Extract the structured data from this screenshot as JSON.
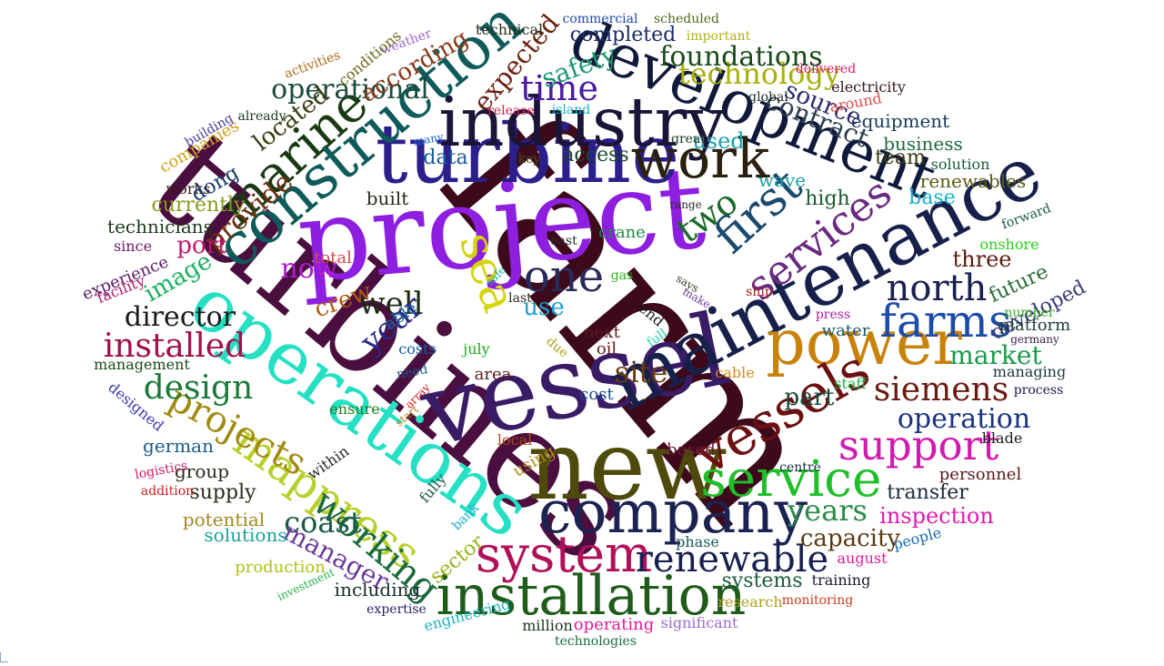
{
  "word_cloud": {
    "words": [
      {
        "text": "farm",
        "color": "#3d0a1c"
      },
      {
        "text": "turbines",
        "color": "#4a0f3f"
      },
      {
        "text": "project",
        "color": "#8e1fe0"
      },
      {
        "text": "vessel",
        "color": "#3a1c66"
      },
      {
        "text": "new",
        "color": "#4e4a0b"
      },
      {
        "text": "turbine",
        "color": "#2b1f8c"
      },
      {
        "text": "maintenance",
        "color": "#16204a"
      },
      {
        "text": "operations",
        "color": "#26e0c4"
      },
      {
        "text": "industry",
        "color": "#1a1436"
      },
      {
        "text": "development",
        "color": "#0f1a3a"
      },
      {
        "text": "construction",
        "color": "#0f5a5a"
      },
      {
        "text": "company",
        "color": "#1a2352"
      },
      {
        "text": "installation",
        "color": "#1f5c1a"
      },
      {
        "text": "system",
        "color": "#b0105a"
      },
      {
        "text": "power",
        "color": "#c8820a"
      },
      {
        "text": "work",
        "color": "#2a2010"
      },
      {
        "text": "vessels",
        "color": "#6a1010"
      },
      {
        "text": "service",
        "color": "#1fbf2a"
      },
      {
        "text": "farms",
        "color": "#1c4ca8"
      },
      {
        "text": "mappress",
        "color": "#b8cf2a"
      },
      {
        "text": "marine",
        "color": "#1a3a14"
      },
      {
        "text": "support",
        "color": "#d01ab0"
      },
      {
        "text": "first",
        "color": "#1a4a70"
      },
      {
        "text": "services",
        "color": "#6a2a80"
      },
      {
        "text": "one",
        "color": "#2a2a5a"
      },
      {
        "text": "sea",
        "color": "#d4d60a"
      },
      {
        "text": "projects",
        "color": "#a08a10"
      },
      {
        "text": "working",
        "color": "#1a6a3a"
      },
      {
        "text": "renewable",
        "color": "#182050"
      },
      {
        "text": "siemens",
        "color": "#6a1a10"
      },
      {
        "text": "north",
        "color": "#1a2050"
      },
      {
        "text": "operation",
        "color": "#1a3280"
      },
      {
        "text": "installed",
        "color": "#a0104a"
      },
      {
        "text": "design",
        "color": "#1a7a3a"
      },
      {
        "text": "time",
        "color": "#4a1aa0"
      },
      {
        "text": "technology",
        "color": "#a8b00a"
      },
      {
        "text": "foundations",
        "color": "#1a4a1a"
      },
      {
        "text": "operational",
        "color": "#1a4a3a"
      },
      {
        "text": "contract",
        "color": "#2a4050"
      },
      {
        "text": "well",
        "color": "#1a2a10"
      },
      {
        "text": "two",
        "color": "#1a6a2a"
      },
      {
        "text": "director",
        "color": "#1a1a1a"
      },
      {
        "text": "years",
        "color": "#2a8a4a"
      },
      {
        "text": "market",
        "color": "#1a9a4a"
      },
      {
        "text": "coast",
        "color": "#1a5a4a"
      },
      {
        "text": "provide",
        "color": "#6a3010"
      },
      {
        "text": "site",
        "color": "#6a3a10"
      },
      {
        "text": "part",
        "color": "#1a4a3a"
      },
      {
        "text": "safety",
        "color": "#1a9a6a"
      },
      {
        "text": "expected",
        "color": "#6a2010"
      },
      {
        "text": "according",
        "color": "#8a3a1a"
      },
      {
        "text": "manager",
        "color": "#6a3a9a"
      },
      {
        "text": "capacity",
        "color": "#5a3a10"
      },
      {
        "text": "inspection",
        "color": "#e01ab0"
      },
      {
        "text": "transfer",
        "color": "#1a2a3a"
      },
      {
        "text": "year",
        "color": "#2a2a8a"
      },
      {
        "text": "port",
        "color": "#c01a6a"
      },
      {
        "text": "now",
        "color": "#b01ad0"
      },
      {
        "text": "use",
        "color": "#1aa0d0"
      },
      {
        "text": "crew",
        "color": "#b05a10"
      },
      {
        "text": "located",
        "color": "#3a3a10"
      },
      {
        "text": "source",
        "color": "#2a2a6a"
      },
      {
        "text": "used",
        "color": "#1aa0b0"
      },
      {
        "text": "team",
        "color": "#3a3a10"
      },
      {
        "text": "business",
        "color": "#1a6a3a"
      },
      {
        "text": "base",
        "color": "#1ab0d0"
      },
      {
        "text": "high",
        "color": "#1a5a2a"
      },
      {
        "text": "three",
        "color": "#5a1a10"
      },
      {
        "text": "future",
        "color": "#2a6a3a"
      },
      {
        "text": "developed",
        "color": "#3a3a7a"
      },
      {
        "text": "renewables",
        "color": "#5a5a10"
      },
      {
        "text": "equipment",
        "color": "#1a3a5a"
      },
      {
        "text": "access",
        "color": "#1a4a2a"
      },
      {
        "text": "data",
        "color": "#1a5aa0"
      },
      {
        "text": "built",
        "color": "#2a2a1a"
      },
      {
        "text": "image",
        "color": "#1ab060"
      },
      {
        "text": "currently",
        "color": "#8a9a1a"
      },
      {
        "text": "technicians",
        "color": "#1a3a1a"
      },
      {
        "text": "supply",
        "color": "#2a2a1a"
      },
      {
        "text": "solutions",
        "color": "#1aa09a"
      },
      {
        "text": "german",
        "color": "#1a5a8a"
      },
      {
        "text": "potential",
        "color": "#a08a1a"
      },
      {
        "text": "production",
        "color": "#b0c01a"
      },
      {
        "text": "including",
        "color": "#1a2a2a"
      },
      {
        "text": "sector",
        "color": "#9ab01a"
      },
      {
        "text": "completed",
        "color": "#1a2a6a"
      },
      {
        "text": "technical",
        "color": "#2a2a1a"
      },
      {
        "text": "commercial",
        "color": "#1a4ab0"
      },
      {
        "text": "scheduled",
        "color": "#4a6a1a"
      },
      {
        "text": "important",
        "color": "#b0b01a"
      },
      {
        "text": "delivered",
        "color": "#e01a6a"
      },
      {
        "text": "electricity",
        "color": "#3a1a1a"
      },
      {
        "text": "global",
        "color": "#1a2a2a"
      },
      {
        "text": "around",
        "color": "#e04a4a"
      },
      {
        "text": "release",
        "color": "#d01a4a"
      },
      {
        "text": "island",
        "color": "#1ab0c0"
      },
      {
        "text": "many",
        "color": "#1a6ad0"
      },
      {
        "text": "great",
        "color": "#1a3a1a"
      },
      {
        "text": "key",
        "color": "#4a4a1a"
      },
      {
        "text": "solution",
        "color": "#1a5a3a"
      },
      {
        "text": "wave",
        "color": "#1aa0a0"
      },
      {
        "text": "range",
        "color": "#2a2a2a"
      },
      {
        "text": "forward",
        "color": "#1a5a3a"
      },
      {
        "text": "onshore",
        "color": "#2ad01a"
      },
      {
        "text": "companies",
        "color": "#d0a01a"
      },
      {
        "text": "building",
        "color": "#4a3a9a"
      },
      {
        "text": "already",
        "color": "#1a3a1a"
      },
      {
        "text": "weather",
        "color": "#a06ad0"
      },
      {
        "text": "conditions",
        "color": "#6a6a1a"
      },
      {
        "text": "activities",
        "color": "#b06a1a"
      },
      {
        "text": "works",
        "color": "#3a1a1a"
      },
      {
        "text": "dong",
        "color": "#1a3a6a"
      },
      {
        "text": "since",
        "color": "#6a1a6a"
      },
      {
        "text": "experience",
        "color": "#5a1a6a"
      },
      {
        "text": "facility",
        "color": "#b01a6a"
      },
      {
        "text": "total",
        "color": "#d04a4a"
      },
      {
        "text": "safe",
        "color": "#1ab0b0"
      },
      {
        "text": "gas",
        "color": "#2ab01a"
      },
      {
        "text": "east",
        "color": "#2a2a2a"
      },
      {
        "text": "crane",
        "color": "#1a8a4a"
      },
      {
        "text": "last",
        "color": "#2a2a1a"
      },
      {
        "text": "says",
        "color": "#3a3a1a"
      },
      {
        "text": "make",
        "color": "#6a3a9a"
      },
      {
        "text": "ship",
        "color": "#b01a1a"
      },
      {
        "text": "press",
        "color": "#b01ab0"
      },
      {
        "text": "number",
        "color": "#2ab01a"
      },
      {
        "text": "germany",
        "color": "#3a1a4a"
      },
      {
        "text": "platform",
        "color": "#1a3a3a"
      },
      {
        "text": "able",
        "color": "#1a6a9a"
      },
      {
        "text": "end",
        "color": "#1a1a1a"
      },
      {
        "text": "full",
        "color": "#2ad0b0"
      },
      {
        "text": "next",
        "color": "#5a1a1a"
      },
      {
        "text": "oil",
        "color": "#6a1a1a"
      },
      {
        "text": "water",
        "color": "#1a5a6a"
      },
      {
        "text": "costs",
        "color": "#1a5aa0"
      },
      {
        "text": "july",
        "color": "#1ab01a"
      },
      {
        "text": "due",
        "color": "#b0a01a"
      },
      {
        "text": "management",
        "color": "#1a4a1a"
      },
      {
        "text": "need",
        "color": "#1a5a8a"
      },
      {
        "text": "area",
        "color": "#5a1a1a"
      },
      {
        "text": "cost",
        "color": "#1a4a8a"
      },
      {
        "text": "cable",
        "color": "#d08a1a"
      },
      {
        "text": "staff",
        "color": "#1ab04a"
      },
      {
        "text": "managing",
        "color": "#1a3a3a"
      },
      {
        "text": "process",
        "color": "#1a1a4a"
      },
      {
        "text": "designed",
        "color": "#3a3ab0"
      },
      {
        "text": "array",
        "color": "#d01a1a"
      },
      {
        "text": "ensure",
        "color": "#1a7a1a"
      },
      {
        "text": "start",
        "color": "#b07a1a"
      },
      {
        "text": "local",
        "color": "#b04a1a"
      },
      {
        "text": "using",
        "color": "#b08a1a"
      },
      {
        "text": "within",
        "color": "#2a2a2a"
      },
      {
        "text": "group",
        "color": "#2a2a1a"
      },
      {
        "text": "based",
        "color": "#6a1a3a"
      },
      {
        "text": "centre",
        "color": "#1a2a4a"
      },
      {
        "text": "blade",
        "color": "#1a1a1a"
      },
      {
        "text": "personnel",
        "color": "#5a1a1a"
      },
      {
        "text": "logistics",
        "color": "#d01a6a"
      },
      {
        "text": "addition",
        "color": "#d01a1a"
      },
      {
        "text": "fully",
        "color": "#1a5a4a"
      },
      {
        "text": "bank",
        "color": "#1ab0d0"
      },
      {
        "text": "phase",
        "color": "#1a5a5a"
      },
      {
        "text": "people",
        "color": "#1a6ab0"
      },
      {
        "text": "august",
        "color": "#e01a9a"
      },
      {
        "text": "systems",
        "color": "#1a5a3a"
      },
      {
        "text": "training",
        "color": "#1a1a2a"
      },
      {
        "text": "research",
        "color": "#b0a01a"
      },
      {
        "text": "monitoring",
        "color": "#d03a1a"
      },
      {
        "text": "investment",
        "color": "#2ab04a"
      },
      {
        "text": "expertise",
        "color": "#2a1a6a"
      },
      {
        "text": "engineering",
        "color": "#1ab0c0"
      },
      {
        "text": "million",
        "color": "#1a3a1a"
      },
      {
        "text": "operating",
        "color": "#e01a9a"
      },
      {
        "text": "significant",
        "color": "#9a6ad0"
      },
      {
        "text": "technologies",
        "color": "#1a6a3a"
      }
    ]
  }
}
